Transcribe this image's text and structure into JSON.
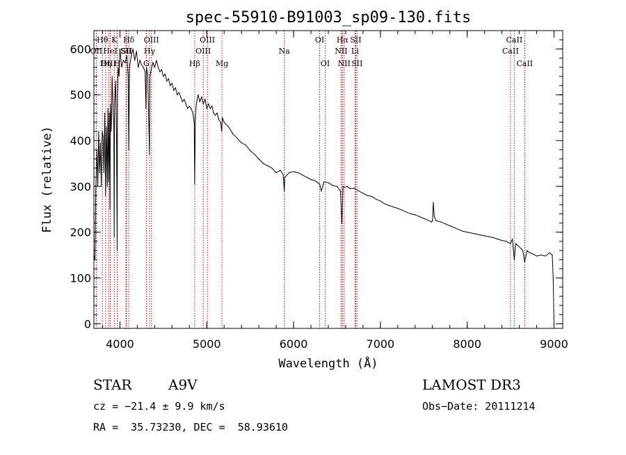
{
  "chart_data": {
    "type": "line",
    "title": "spec-55910-B91003_sp09-130.fits",
    "xlabel": "Wavelength (Å)",
    "ylabel": "Flux (relative)",
    "xlim": [
      3700,
      9100
    ],
    "ylim": [
      -10,
      640
    ],
    "xticks": [
      4000,
      5000,
      6000,
      7000,
      8000,
      9000
    ],
    "yticks": [
      0,
      100,
      200,
      300,
      400,
      500,
      600
    ],
    "series": [
      {
        "name": "flux",
        "x": [
          3700,
          3712,
          3722,
          3735,
          3745,
          3755,
          3765,
          3775,
          3785,
          3795,
          3805,
          3815,
          3825,
          3835,
          3845,
          3855,
          3862,
          3870,
          3878,
          3885,
          3890,
          3900,
          3910,
          3920,
          3930,
          3934,
          3938,
          3950,
          3960,
          3968,
          3972,
          3980,
          3990,
          4000,
          4020,
          4040,
          4060,
          4080,
          4095,
          4102,
          4110,
          4130,
          4150,
          4170,
          4190,
          4210,
          4230,
          4250,
          4270,
          4290,
          4300,
          4305,
          4320,
          4340,
          4345,
          4360,
          4380,
          4400,
          4420,
          4440,
          4460,
          4480,
          4500,
          4520,
          4540,
          4560,
          4580,
          4600,
          4620,
          4640,
          4660,
          4680,
          4700,
          4720,
          4740,
          4760,
          4780,
          4800,
          4820,
          4840,
          4855,
          4861,
          4868,
          4880,
          4900,
          4920,
          4940,
          4960,
          4980,
          5000,
          5020,
          5040,
          5060,
          5080,
          5100,
          5120,
          5140,
          5160,
          5172,
          5180,
          5200,
          5250,
          5300,
          5350,
          5400,
          5450,
          5500,
          5550,
          5600,
          5650,
          5700,
          5750,
          5800,
          5850,
          5880,
          5893,
          5900,
          5950,
          6000,
          6050,
          6100,
          6150,
          6200,
          6250,
          6300,
          6320,
          6350,
          6400,
          6450,
          6500,
          6540,
          6556,
          6563,
          6570,
          6590,
          6620,
          6650,
          6700,
          6750,
          6800,
          6850,
          6900,
          6950,
          7000,
          7050,
          7100,
          7150,
          7200,
          7250,
          7300,
          7350,
          7400,
          7450,
          7500,
          7550,
          7590,
          7600,
          7610,
          7620,
          7640,
          7700,
          7750,
          7800,
          7850,
          7900,
          7950,
          8000,
          8050,
          8100,
          8150,
          8200,
          8250,
          8300,
          8350,
          8400,
          8450,
          8498,
          8520,
          8542,
          8560,
          8600,
          8640,
          8662,
          8690,
          8720,
          8760,
          8800,
          8850,
          8900,
          8950,
          8980,
          8990,
          9000
        ],
        "y": [
          150,
          140,
          290,
          380,
          300,
          420,
          330,
          395,
          300,
          420,
          410,
          330,
          460,
          280,
          430,
          300,
          470,
          310,
          460,
          250,
          480,
          420,
          540,
          470,
          430,
          190,
          480,
          530,
          410,
          160,
          500,
          560,
          540,
          600,
          560,
          575,
          570,
          585,
          540,
          380,
          560,
          585,
          600,
          575,
          595,
          560,
          575,
          565,
          560,
          550,
          470,
          560,
          545,
          370,
          540,
          555,
          570,
          560,
          575,
          560,
          550,
          555,
          540,
          545,
          530,
          535,
          520,
          525,
          510,
          515,
          500,
          505,
          495,
          485,
          490,
          480,
          470,
          475,
          470,
          460,
          440,
          305,
          450,
          480,
          500,
          485,
          495,
          480,
          490,
          470,
          480,
          470,
          475,
          460,
          455,
          460,
          445,
          440,
          420,
          450,
          440,
          430,
          415,
          405,
          395,
          390,
          378,
          370,
          360,
          350,
          345,
          340,
          330,
          335,
          325,
          290,
          320,
          330,
          332,
          330,
          325,
          320,
          315,
          312,
          305,
          290,
          310,
          308,
          302,
          300,
          290,
          220,
          260,
          300,
          298,
          300,
          295,
          296,
          290,
          285,
          280,
          278,
          272,
          268,
          262,
          258,
          255,
          252,
          248,
          244,
          240,
          238,
          234,
          230,
          226,
          222,
          225,
          265,
          235,
          225,
          222,
          218,
          214,
          210,
          206,
          202,
          200,
          198,
          196,
          194,
          192,
          190,
          188,
          185,
          182,
          180,
          175,
          185,
          140,
          175,
          168,
          160,
          135,
          160,
          155,
          152,
          148,
          150,
          148,
          155,
          150,
          100,
          0
        ]
      }
    ],
    "spectral_lines": [
      {
        "name": "Hθ",
        "wavelength": 3798,
        "row": 1
      },
      {
        "name": "OII",
        "wavelength": 3727,
        "row": 2
      },
      {
        "name": "HeI",
        "wavelength": 3889,
        "row": 2
      },
      {
        "name": "Hη",
        "wavelength": 3835,
        "row": 3
      },
      {
        "name": "OIII",
        "wavelength": 3869,
        "row": 3
      },
      {
        "name": "K",
        "wavelength": 3934,
        "row": 1
      },
      {
        "name": "SII",
        "wavelength": 4069,
        "row": 2
      },
      {
        "name": "H",
        "wavelength": 3968,
        "row": 3
      },
      {
        "name": "Hδ",
        "wavelength": 4102,
        "row": 1
      },
      {
        "name": "SII",
        "wavelength": 4076,
        "row": 2
      },
      {
        "name": "OIII",
        "wavelength": 4363,
        "row": 1
      },
      {
        "name": "Hγ",
        "wavelength": 4341,
        "row": 2
      },
      {
        "name": "G",
        "wavelength": 4304,
        "row": 3
      },
      {
        "name": "OIII",
        "wavelength": 5007,
        "row": 1
      },
      {
        "name": "OIII",
        "wavelength": 4959,
        "row": 2
      },
      {
        "name": "Hβ",
        "wavelength": 4861,
        "row": 3
      },
      {
        "name": "Mg",
        "wavelength": 5175,
        "row": 3
      },
      {
        "name": "Na",
        "wavelength": 5893,
        "row": 2
      },
      {
        "name": "OI",
        "wavelength": 6300,
        "row": 1
      },
      {
        "name": "OI",
        "wavelength": 6364,
        "row": 3
      },
      {
        "name": "Hα",
        "wavelength": 6563,
        "row": 1
      },
      {
        "name": "SII",
        "wavelength": 6716,
        "row": 1
      },
      {
        "name": "NII",
        "wavelength": 6548,
        "row": 2
      },
      {
        "name": "Li",
        "wavelength": 6708,
        "row": 2
      },
      {
        "name": "NII",
        "wavelength": 6583,
        "row": 3
      },
      {
        "name": "SII",
        "wavelength": 6731,
        "row": 3
      },
      {
        "name": "CaII",
        "wavelength": 8542,
        "row": 1
      },
      {
        "name": "CaII",
        "wavelength": 8498,
        "row": 2
      },
      {
        "name": "CaII",
        "wavelength": 8662,
        "row": 3
      }
    ],
    "line_marker_color": "#cc0000"
  },
  "info": {
    "object_class": "STAR",
    "subclass": "A9V",
    "survey": "LAMOST DR3",
    "redshift": "cz = −21.4 ± 9.9 km/s",
    "obs_date": "Obs−Date: 20111214",
    "coordinates": "RA =  35.73230, DEC =  58.93610"
  }
}
